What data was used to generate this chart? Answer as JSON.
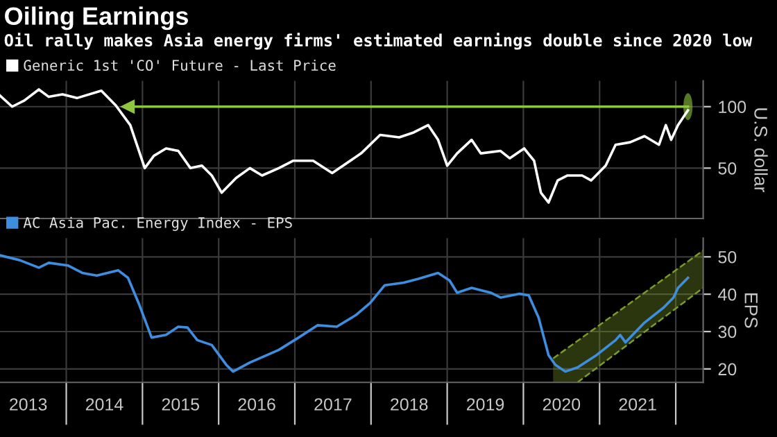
{
  "chart_data": [
    {
      "type": "line",
      "title": "Oiling Earnings",
      "subtitle": "Oil rally makes Asia energy firms' estimated earnings double since 2020 low",
      "ylabel": "U.S. dollar",
      "legend": "top left",
      "grid": true,
      "tick_labels": "y",
      "xlim": [
        2013.13,
        2022.36
      ],
      "ylim": [
        9,
        121
      ],
      "yticks": [
        50,
        100
      ],
      "xticks": [
        {
          "value": 2014,
          "label": null
        },
        {
          "value": 2015,
          "label": null
        },
        {
          "value": 2016,
          "label": null
        },
        {
          "value": 2017,
          "label": null
        },
        {
          "value": 2018,
          "label": null
        },
        {
          "value": 2019,
          "label": null
        },
        {
          "value": 2020,
          "label": null
        },
        {
          "value": 2021,
          "label": null
        },
        {
          "value": 2022,
          "label": null
        }
      ],
      "series": [
        {
          "name": "Generic 1st 'CO' Future - Last Price",
          "color": "#ffffff",
          "x": [
            2013.13,
            2013.29,
            2013.45,
            2013.64,
            2013.77,
            2013.95,
            2014.14,
            2014.46,
            2014.65,
            2014.84,
            2015.03,
            2015.15,
            2015.31,
            2015.47,
            2015.63,
            2015.78,
            2015.91,
            2016.04,
            2016.23,
            2016.41,
            2016.57,
            2016.79,
            2016.98,
            2017.24,
            2017.49,
            2017.87,
            2018.12,
            2018.37,
            2018.56,
            2018.75,
            2018.88,
            2019.0,
            2019.13,
            2019.32,
            2019.44,
            2019.7,
            2019.82,
            2020.01,
            2020.14,
            2020.23,
            2020.33,
            2020.45,
            2020.58,
            2020.77,
            2020.89,
            2021.08,
            2021.21,
            2021.4,
            2021.59,
            2021.78,
            2021.87,
            2021.94,
            2022.03,
            2022.16
          ],
          "values": [
            109,
            100,
            105,
            114,
            108,
            110,
            107,
            113,
            101,
            85,
            50,
            60,
            66,
            64,
            50,
            52,
            44,
            30,
            42,
            50,
            44,
            50,
            56,
            56,
            46,
            62,
            77,
            75,
            79,
            85,
            73,
            52,
            62,
            73,
            62,
            64,
            58,
            66,
            56,
            30,
            22,
            40,
            44,
            44,
            40,
            52,
            69,
            71,
            76,
            69,
            85,
            73,
            85,
            97
          ]
        },
        {
          "color": "#8dc63f",
          "marker": "triangle",
          "x": [
            2014.81,
            2022.16
          ],
          "values": [
            100,
            100
          ]
        }
      ]
    },
    {
      "type": "line",
      "ylabel": "EPS",
      "legend": "top left",
      "grid": true,
      "xlim": [
        2013.13,
        2022.36
      ],
      "ylim": [
        16.4,
        55
      ],
      "yticks": [
        20,
        30,
        40,
        50
      ],
      "xticks": [
        {
          "value": 2013.5,
          "label": "2013"
        },
        {
          "value": 2014,
          "label": null
        },
        {
          "value": 2014.5,
          "label": "2014"
        },
        {
          "value": 2015,
          "label": null
        },
        {
          "value": 2015.5,
          "label": "2015"
        },
        {
          "value": 2016,
          "label": null
        },
        {
          "value": 2016.5,
          "label": "2016"
        },
        {
          "value": 2017,
          "label": null
        },
        {
          "value": 2017.5,
          "label": "2017"
        },
        {
          "value": 2018,
          "label": null
        },
        {
          "value": 2018.5,
          "label": "2018"
        },
        {
          "value": 2019,
          "label": null
        },
        {
          "value": 2019.5,
          "label": "2019"
        },
        {
          "value": 2020,
          "label": null
        },
        {
          "value": 2020.5,
          "label": "2020"
        },
        {
          "value": 2021,
          "label": null
        },
        {
          "value": 2021.5,
          "label": "2021"
        },
        {
          "value": 2022,
          "label": null
        }
      ],
      "series": [
        {
          "color": "#7a9a2a",
          "line_style": "dashed",
          "x": [
            2020.39,
            2022.36
          ],
          "values": [
            22.8,
            51.7
          ]
        },
        {
          "color": "#7a9a2a",
          "line_style": "dashed",
          "x": [
            2020.71,
            2022.36
          ],
          "values": [
            16.4,
            41.7
          ]
        },
        {
          "name": "AC Asia Pac. Energy Index - EPS",
          "color": "#3d8ee0",
          "x": [
            2013.13,
            2013.39,
            2013.64,
            2013.77,
            2014.02,
            2014.21,
            2014.4,
            2014.68,
            2014.81,
            2014.96,
            2015.12,
            2015.31,
            2015.47,
            2015.59,
            2015.72,
            2015.91,
            2016.1,
            2016.19,
            2016.41,
            2016.79,
            2017.05,
            2017.3,
            2017.55,
            2017.8,
            2017.99,
            2018.18,
            2018.43,
            2018.62,
            2018.88,
            2019.03,
            2019.13,
            2019.32,
            2019.57,
            2019.7,
            2019.95,
            2020.07,
            2020.2,
            2020.33,
            2020.42,
            2020.55,
            2020.71,
            2020.96,
            2021.21,
            2021.27,
            2021.34,
            2021.59,
            2021.84,
            2021.97,
            2022.03,
            2022.16
          ],
          "values": [
            50.4,
            49.1,
            47.1,
            48.4,
            47.7,
            45.7,
            45.0,
            46.4,
            44.4,
            37.1,
            28.4,
            29.1,
            31.3,
            31.1,
            27.7,
            26.4,
            21.1,
            19.3,
            21.7,
            25.1,
            28.4,
            31.7,
            31.3,
            34.4,
            37.7,
            42.4,
            43.1,
            44.1,
            45.7,
            43.7,
            40.4,
            41.7,
            40.4,
            39.1,
            40.1,
            39.7,
            33.7,
            23.7,
            21.1,
            19.3,
            20.4,
            23.7,
            27.7,
            29.1,
            27.1,
            32.4,
            36.4,
            39.1,
            41.7,
            44.4
          ]
        }
      ]
    }
  ]
}
